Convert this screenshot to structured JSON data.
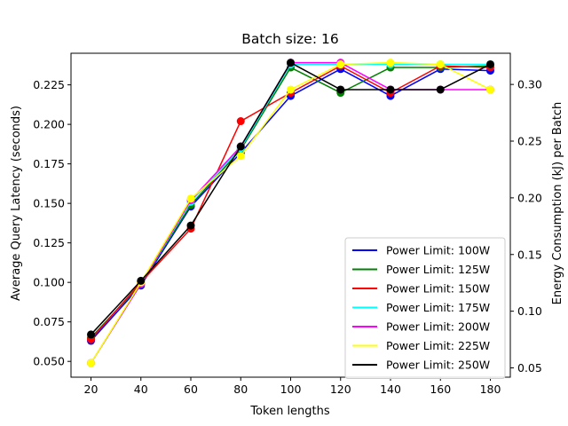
{
  "chart_data": {
    "type": "line",
    "title": "Batch size: 16",
    "xlabel": "Token lengths",
    "ylabel": "Average Query Latency (seconds)",
    "ylabel_right": "Energy Consumption (kJ) per Batch",
    "x": [
      20,
      40,
      60,
      80,
      100,
      120,
      140,
      160,
      180
    ],
    "xlim": [
      12,
      188
    ],
    "ylim": [
      0.04,
      0.245
    ],
    "yticks": [
      0.05,
      0.075,
      0.1,
      0.125,
      0.15,
      0.175,
      0.2,
      0.225
    ],
    "ytick_labels": [
      "0.050",
      "0.075",
      "0.100",
      "0.125",
      "0.150",
      "0.175",
      "0.200",
      "0.225"
    ],
    "ylim_right": [
      0.0418,
      0.3275
    ],
    "yticks_right": [
      0.05,
      0.1,
      0.15,
      0.2,
      0.25,
      0.3
    ],
    "ytick_labels_right": [
      "0.05",
      "0.10",
      "0.15",
      "0.20",
      "0.25",
      "0.30"
    ],
    "grid": false,
    "legend_position": "lower-right",
    "series": [
      {
        "name": "Power Limit: 100W",
        "color": "#0000ff",
        "values": [
          0.063,
          0.098,
          0.148,
          0.182,
          0.218,
          0.235,
          0.218,
          0.235,
          0.234
        ]
      },
      {
        "name": "Power Limit: 125W",
        "color": "#008000",
        "values": [
          0.065,
          0.099,
          0.149,
          0.184,
          0.236,
          0.22,
          0.236,
          0.236,
          0.237
        ]
      },
      {
        "name": "Power Limit: 150W",
        "color": "#ff0000",
        "values": [
          0.064,
          0.1,
          0.134,
          0.202,
          0.22,
          0.237,
          0.22,
          0.237,
          0.236
        ]
      },
      {
        "name": "Power Limit: 175W",
        "color": "#00ffff",
        "values": [
          0.049,
          0.099,
          0.151,
          0.185,
          0.238,
          0.238,
          0.238,
          0.238,
          0.238
        ]
      },
      {
        "name": "Power Limit: 200W",
        "color": "#ff00ff",
        "values": [
          0.049,
          0.099,
          0.152,
          0.186,
          0.239,
          0.239,
          0.222,
          0.222,
          0.222
        ]
      },
      {
        "name": "Power Limit: 225W",
        "color": "#ffff00",
        "values": [
          0.049,
          0.1,
          0.153,
          0.18,
          0.222,
          0.238,
          0.239,
          0.238,
          0.222
        ]
      },
      {
        "name": "Power Limit: 250W",
        "color": "#000000",
        "values": [
          0.067,
          0.101,
          0.136,
          0.186,
          0.239,
          0.222,
          0.222,
          0.222,
          0.238
        ]
      }
    ]
  }
}
